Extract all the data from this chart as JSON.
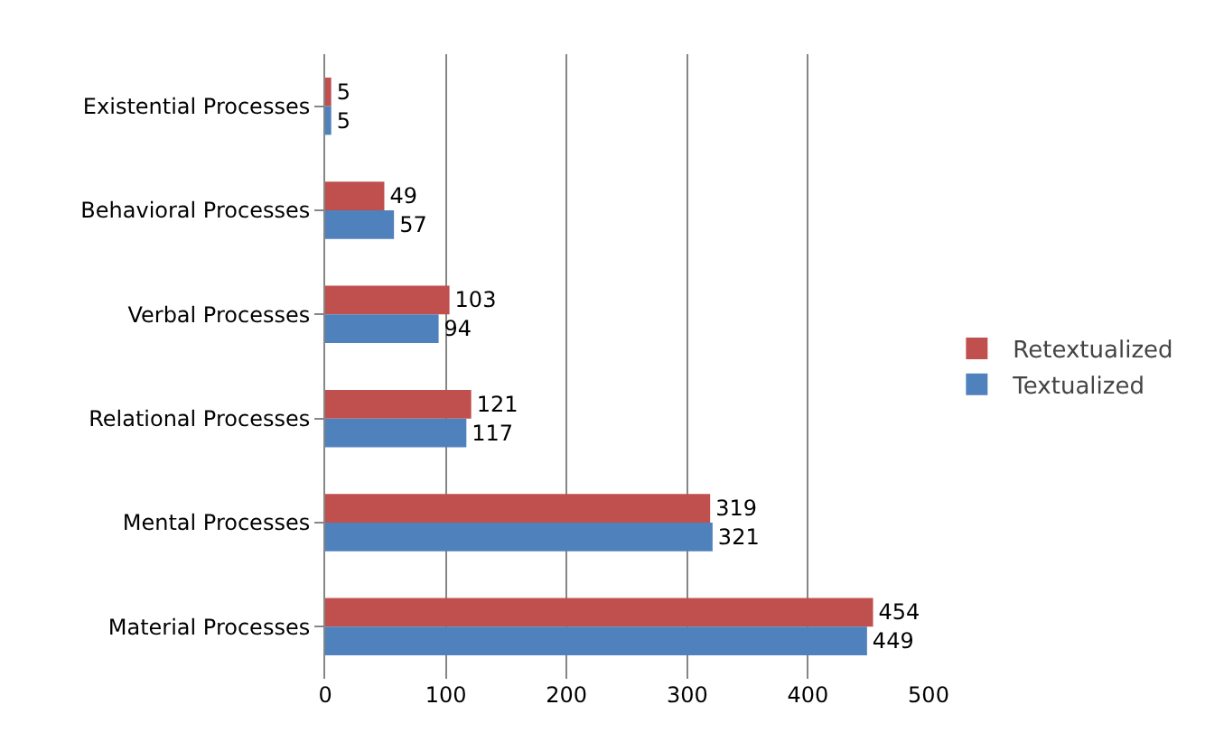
{
  "chart_data": {
    "type": "bar",
    "orientation": "horizontal",
    "categories": [
      "Existential Processes",
      "Behavioral Processes",
      "Verbal Processes",
      "Relational Processes",
      "Mental Processes",
      "Material Processes"
    ],
    "series": [
      {
        "name": "Retextualized",
        "color": "#c0504d",
        "values": [
          5,
          49,
          103,
          121,
          319,
          454
        ]
      },
      {
        "name": "Textualized",
        "color": "#4f81bd",
        "values": [
          5,
          57,
          94,
          117,
          321,
          449
        ]
      }
    ],
    "xlim": [
      0,
      500
    ],
    "xticks": [
      0,
      100,
      200,
      300,
      400,
      500
    ],
    "grid": "x",
    "legend": "right",
    "data_labels": true
  }
}
